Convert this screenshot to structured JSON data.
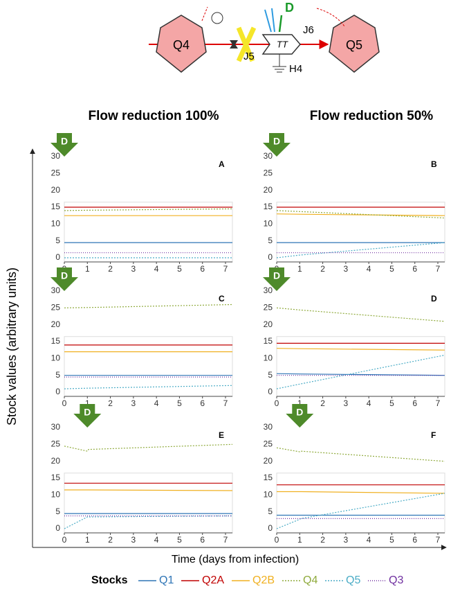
{
  "diagram": {
    "q4": "Q4",
    "q5": "Q5",
    "tt": "TT",
    "j5": "J5",
    "j6": "J6",
    "h4": "H4",
    "d": "D"
  },
  "column_titles": [
    "Flow reduction 100%",
    "Flow reduction 50%"
  ],
  "ylabel": "Stock values (arbitrary units)",
  "xlabel": "Time (days from infection)",
  "legend": {
    "title": "Stocks",
    "items": [
      {
        "name": "Q1",
        "color": "#2e75b6",
        "dash": "none"
      },
      {
        "name": "Q2A",
        "color": "#c00000",
        "dash": "none"
      },
      {
        "name": "Q2B",
        "color": "#f0b020",
        "dash": "none"
      },
      {
        "name": "Q4",
        "color": "#8faa3c",
        "dash": "2 2"
      },
      {
        "name": "Q5",
        "color": "#4bacc6",
        "dash": "2 2"
      },
      {
        "name": "Q3",
        "color": "#7030a0",
        "dash": "1 2"
      }
    ]
  },
  "chart_data": [
    {
      "type": "line",
      "title": "A",
      "annotation": {
        "text": "D",
        "x": 0
      },
      "x": [
        0,
        1,
        7.3
      ],
      "xlim": [
        0,
        7.3
      ],
      "ylim": [
        0,
        30
      ],
      "xticks": [
        0,
        1,
        2,
        3,
        4,
        5,
        6,
        7
      ],
      "yticks": [
        0,
        5,
        10,
        15,
        20,
        25,
        30
      ],
      "series": [
        {
          "values": [
            4.5,
            4.5,
            4.5
          ]
        },
        {
          "values": [
            15,
            15,
            15
          ]
        },
        {
          "values": [
            12.5,
            12.5,
            12.5
          ]
        },
        {
          "values": [
            14,
            14.1,
            14.5
          ]
        },
        {
          "values": [
            0,
            0,
            0
          ]
        },
        {
          "values": [
            1.5,
            1.5,
            1.5
          ]
        }
      ]
    },
    {
      "type": "line",
      "title": "B",
      "annotation": {
        "text": "D",
        "x": 0
      },
      "x": [
        0,
        1,
        7.3
      ],
      "xlim": [
        0,
        7.3
      ],
      "ylim": [
        0,
        30
      ],
      "xticks": [
        0,
        1,
        2,
        3,
        4,
        5,
        6,
        7
      ],
      "yticks": [
        0,
        5,
        10,
        15,
        20,
        25,
        30
      ],
      "series": [
        {
          "values": [
            4.5,
            4.5,
            4.5
          ]
        },
        {
          "values": [
            15,
            15,
            15
          ]
        },
        {
          "values": [
            13,
            12.9,
            12.5
          ]
        },
        {
          "values": [
            14,
            13.7,
            11.8
          ]
        },
        {
          "values": [
            0,
            0.8,
            4.5
          ]
        },
        {
          "values": [
            1.5,
            1.5,
            1.5
          ]
        }
      ]
    },
    {
      "type": "line",
      "title": "C",
      "annotation": {
        "text": "D",
        "x": 0
      },
      "x": [
        0,
        1,
        7.3
      ],
      "xlim": [
        0,
        7.3
      ],
      "ylim": [
        0,
        30
      ],
      "xticks": [
        0,
        1,
        2,
        3,
        4,
        5,
        6,
        7
      ],
      "yticks": [
        0,
        5,
        10,
        15,
        20,
        25,
        30
      ],
      "series": [
        {
          "values": [
            5,
            5,
            5
          ]
        },
        {
          "values": [
            14,
            14,
            14
          ]
        },
        {
          "values": [
            12,
            12,
            12
          ]
        },
        {
          "values": [
            25,
            25.1,
            26
          ]
        },
        {
          "values": [
            1,
            1.2,
            2
          ]
        },
        {
          "values": [
            4.5,
            4.5,
            4.5
          ]
        }
      ]
    },
    {
      "type": "line",
      "title": "D",
      "annotation": {
        "text": "D",
        "x": 0
      },
      "x": [
        0,
        1,
        7.3
      ],
      "xlim": [
        0,
        7.3
      ],
      "ylim": [
        0,
        30
      ],
      "xticks": [
        0,
        1,
        2,
        3,
        4,
        5,
        6,
        7
      ],
      "yticks": [
        0,
        5,
        10,
        15,
        20,
        25,
        30
      ],
      "series": [
        {
          "values": [
            5.5,
            5.4,
            5
          ]
        },
        {
          "values": [
            14.5,
            14.5,
            14.5
          ]
        },
        {
          "values": [
            13,
            12.9,
            12.5
          ]
        },
        {
          "values": [
            25,
            24.4,
            21
          ]
        },
        {
          "values": [
            1,
            2.4,
            11
          ]
        },
        {
          "values": [
            5,
            5,
            5
          ]
        }
      ]
    },
    {
      "type": "line",
      "title": "E",
      "annotation": {
        "text": "D",
        "x": 1
      },
      "x": [
        0,
        1,
        1.05,
        7.3
      ],
      "xlim": [
        0,
        7.3
      ],
      "ylim": [
        0,
        30
      ],
      "xticks": [
        0,
        1,
        2,
        3,
        4,
        5,
        6,
        7
      ],
      "yticks": [
        0,
        5,
        10,
        15,
        20,
        25,
        30
      ],
      "series": [
        {
          "values": [
            4.5,
            4.5,
            4.5,
            4.5
          ]
        },
        {
          "values": [
            13.5,
            13.5,
            13.5,
            13.5
          ]
        },
        {
          "values": [
            11.5,
            11.5,
            11.5,
            11.3
          ]
        },
        {
          "values": [
            24.5,
            23,
            23.5,
            25
          ]
        },
        {
          "values": [
            0,
            3.5,
            3.5,
            3.8
          ]
        },
        {
          "values": [
            3.8,
            3.8,
            3.8,
            3.8
          ]
        }
      ]
    },
    {
      "type": "line",
      "title": "F",
      "annotation": {
        "text": "D",
        "x": 1
      },
      "x": [
        0,
        1,
        1.05,
        7.3
      ],
      "xlim": [
        0,
        7.3
      ],
      "ylim": [
        0,
        30
      ],
      "xticks": [
        0,
        1,
        2,
        3,
        4,
        5,
        6,
        7
      ],
      "yticks": [
        0,
        5,
        10,
        15,
        20,
        25,
        30
      ],
      "series": [
        {
          "values": [
            4,
            4,
            4,
            4
          ]
        },
        {
          "values": [
            13,
            13,
            13,
            13
          ]
        },
        {
          "values": [
            11,
            11,
            11,
            10.5
          ]
        },
        {
          "values": [
            24,
            22.8,
            23,
            20
          ]
        },
        {
          "values": [
            0,
            2.8,
            3,
            10.5
          ]
        },
        {
          "values": [
            3,
            3,
            3,
            3
          ]
        }
      ]
    }
  ]
}
